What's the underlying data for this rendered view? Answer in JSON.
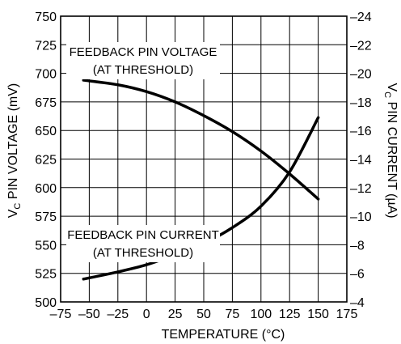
{
  "chart_data": {
    "type": "line",
    "x_label": "TEMPERATURE (°C)",
    "y_left_label": {
      "main": "V",
      "sub": "C",
      "rest": " PIN VOLTAGE (mV)"
    },
    "y_right_label": {
      "main": "V",
      "sub": "C",
      "rest": " PIN CURRENT (µA)"
    },
    "x_range": [
      -75,
      175
    ],
    "x_ticks": [
      -75,
      -50,
      -25,
      0,
      25,
      50,
      75,
      100,
      125,
      150,
      175
    ],
    "x_tick_labels": [
      "–75",
      "–50",
      "–25",
      "0",
      "25",
      "50",
      "75",
      "100",
      "125",
      "150",
      "175"
    ],
    "y_left_range": [
      500,
      750
    ],
    "y_left_ticks": [
      500,
      525,
      550,
      575,
      600,
      625,
      650,
      675,
      700,
      725,
      750
    ],
    "y_left_tick_labels": [
      "500",
      "525",
      "550",
      "575",
      "600",
      "625",
      "650",
      "675",
      "700",
      "725",
      "750"
    ],
    "y_right_range": [
      -4,
      -24
    ],
    "y_right_ticks": [
      -4,
      -6,
      -8,
      -10,
      -12,
      -14,
      -16,
      -18,
      -20,
      -22,
      -24
    ],
    "y_right_tick_labels": [
      "–4",
      "–6",
      "–8",
      "–10",
      "–12",
      "–14",
      "–16",
      "–18",
      "–20",
      "–22",
      "–24"
    ],
    "grid": true,
    "series": [
      {
        "name_lines": [
          "FEEDBACK PIN VOLTAGE",
          "(AT THRESHOLD)"
        ],
        "axis": "left",
        "x": [
          -55,
          -25,
          0,
          25,
          50,
          75,
          100,
          125,
          150
        ],
        "y": [
          694,
          690,
          684,
          675,
          663,
          649,
          632,
          612,
          590
        ]
      },
      {
        "name_lines": [
          "FEEDBACK PIN CURRENT",
          "(AT THRESHOLD)"
        ],
        "axis": "right",
        "x": [
          -55,
          -25,
          0,
          25,
          50,
          75,
          100,
          125,
          150
        ],
        "y": [
          -5.6,
          -6.1,
          -6.6,
          -7.3,
          -8.1,
          -9.2,
          -10.7,
          -13.1,
          -16.9
        ]
      }
    ]
  }
}
